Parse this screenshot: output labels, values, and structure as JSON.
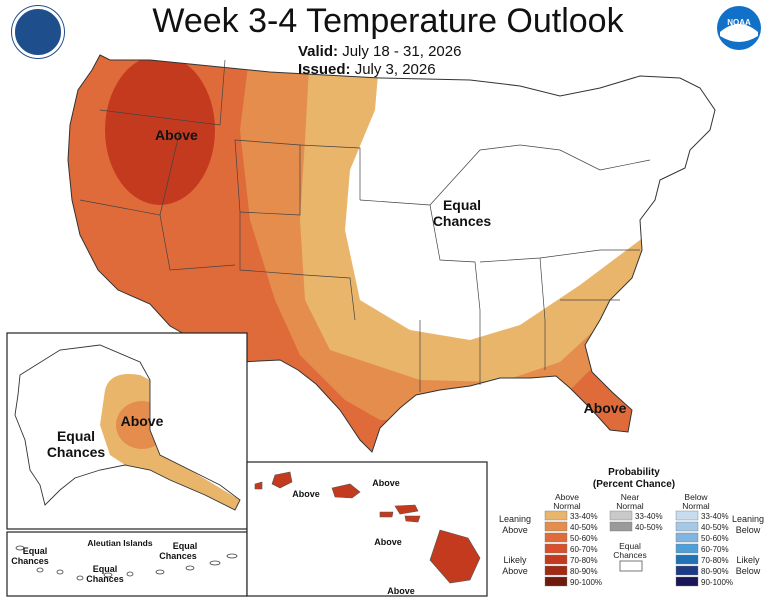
{
  "header": {
    "title": "Week 3-4 Temperature Outlook",
    "valid_label": "Valid:",
    "valid_value": "July 18 - 31, 2026",
    "issued_label": "Issued:",
    "issued_value": "July 3, 2026",
    "left_logo_icon": "department-of-commerce-seal-icon",
    "right_logo_icon": "noaa-logo-icon",
    "right_logo_text": "NOAA"
  },
  "map_labels": {
    "conus_above_nw": "Above",
    "conus_equal_1": "Equal",
    "conus_equal_2": "Chances",
    "conus_above_fl": "Above",
    "alaska_above": "Above",
    "alaska_equal_1": "Equal",
    "alaska_equal_2": "Chances",
    "aleutian_title": "Aleutian Islands",
    "aleutian_equal_a1": "Equal",
    "aleutian_equal_a2": "Chances",
    "aleutian_equal_b1": "Equal",
    "aleutian_equal_b2": "Chances",
    "aleutian_equal_c1": "Equal",
    "aleutian_equal_c2": "Chances",
    "hawaii_above_1": "Above",
    "hawaii_above_2": "Above",
    "hawaii_above_3": "Above",
    "hawaii_above_4": "Above"
  },
  "legend": {
    "title_1": "Probability",
    "title_2": "(Percent Chance)",
    "above_header_1": "Above",
    "above_header_2": "Normal",
    "near_header_1": "Near",
    "near_header_2": "Normal",
    "below_header_1": "Below",
    "below_header_2": "Normal",
    "leaning_above_1": "Leaning",
    "leaning_above_2": "Above",
    "likely_above_1": "Likely",
    "likely_above_2": "Above",
    "leaning_below_1": "Leaning",
    "leaning_below_2": "Below",
    "likely_below_1": "Likely",
    "likely_below_2": "Below",
    "equal_chances_1": "Equal",
    "equal_chances_2": "Chances",
    "above_bins": [
      "33-40%",
      "40-50%",
      "50-60%",
      "60-70%",
      "70-80%",
      "80-90%",
      "90-100%"
    ],
    "above_colors": [
      "#E9B56B",
      "#E48D4C",
      "#E06B3A",
      "#D94F2A",
      "#C43A1E",
      "#A02A14",
      "#6E1A0C"
    ],
    "near_bins": [
      "33-40%",
      "40-50%"
    ],
    "near_colors": [
      "#C9C9C9",
      "#9A9A9A"
    ],
    "below_bins": [
      "33-40%",
      "40-50%",
      "50-60%",
      "60-70%",
      "70-80%",
      "80-90%",
      "90-100%"
    ],
    "below_colors": [
      "#C6DDF0",
      "#A5C8E6",
      "#7FB5E0",
      "#4F9ED8",
      "#1F72B8",
      "#1D3B85",
      "#1B1658"
    ]
  },
  "region_colors": {
    "ocean": "#FFFFFF",
    "land_equal": "#FFFFFF",
    "above_33_40": "#E9B56B",
    "above_40_50": "#E48D4C",
    "above_50_60": "#E06B3A",
    "above_60_70": "#D94F2A",
    "above_70_80": "#C43A1E"
  }
}
